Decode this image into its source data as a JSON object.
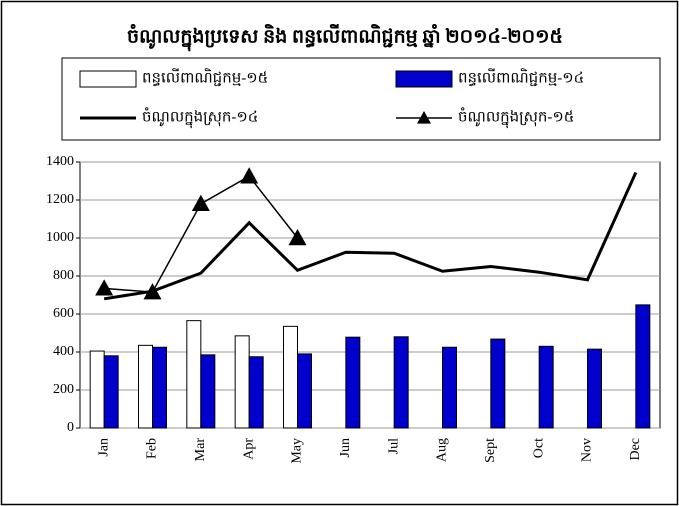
{
  "chart_data": {
    "type": "bar",
    "title": "ចំណូលក្នុងប្រទេស និង ពន្ធលើពាណិជ្ជកម្ម ឆ្នាំ ២០១៤-២០១៥",
    "categories": [
      "Jan",
      "Feb",
      "Mar",
      "Apr",
      "May",
      "Jun",
      "Jul",
      "Aug",
      "Sept",
      "Oct",
      "Nov",
      "Dec"
    ],
    "series": [
      {
        "name": "ពន្ធលើពាណិជ្ជកម្ម-១៥",
        "type": "bar",
        "color": "#ffffff",
        "values": [
          405,
          435,
          565,
          485,
          535,
          null,
          null,
          null,
          null,
          null,
          null,
          null
        ]
      },
      {
        "name": "ពន្ធលើពាណិជ្ជកម្ម-១៤",
        "type": "bar",
        "color": "#0000cc",
        "values": [
          380,
          425,
          385,
          375,
          390,
          478,
          480,
          425,
          468,
          430,
          415,
          648
        ]
      },
      {
        "name": "ចំណូលក្នុងស្រុក-១៤",
        "type": "line",
        "color": "#000000",
        "values": [
          680,
          720,
          815,
          1080,
          830,
          925,
          920,
          825,
          850,
          820,
          780,
          1345
        ]
      },
      {
        "name": "ចំណូលក្នុងស្រុក-១៥",
        "type": "line",
        "marker": "triangle",
        "color": "#000000",
        "values": [
          735,
          715,
          1180,
          1325,
          1000,
          null,
          null,
          null,
          null,
          null,
          null,
          null
        ]
      }
    ],
    "ylim": [
      0,
      1400
    ],
    "yticks": [
      0,
      200,
      400,
      600,
      800,
      1000,
      1200,
      1400
    ],
    "grid": true
  }
}
